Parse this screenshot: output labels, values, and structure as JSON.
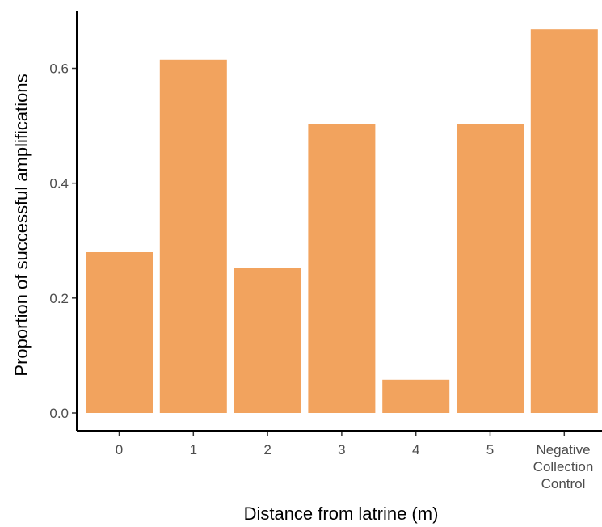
{
  "chart_data": {
    "type": "bar",
    "categories": [
      "0",
      "1",
      "2",
      "3",
      "4",
      "5",
      "Negative\nCollection\nControl"
    ],
    "values": [
      0.28,
      0.615,
      0.252,
      0.503,
      0.058,
      0.503,
      0.668
    ],
    "xlabel": "Distance from latrine (m)",
    "ylabel": "Proportion of successful amplifications",
    "ylim": [
      0,
      0.7
    ],
    "yticks": [
      0.0,
      0.2,
      0.4,
      0.6
    ],
    "ytick_labels": [
      "0.0",
      "0.2",
      "0.4",
      "0.6"
    ],
    "grid": false,
    "bar_color": "#f2a35e",
    "axis_color": "#000000",
    "tick_label_color": "#4d4d4d"
  }
}
